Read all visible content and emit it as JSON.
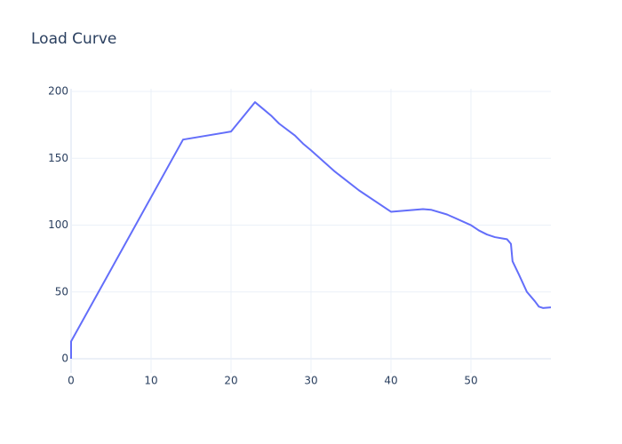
{
  "chart_data": {
    "type": "line",
    "title": "Load Curve",
    "x": [
      0,
      0,
      14,
      20,
      23,
      24,
      25,
      26,
      28,
      29,
      30,
      33,
      36,
      40,
      44,
      45,
      47,
      50,
      51,
      52,
      53,
      54,
      54.5,
      55,
      55.2,
      56,
      57,
      58,
      58.5,
      59,
      60
    ],
    "series": [
      {
        "color": "#636efa",
        "values": [
          0,
          13,
          164,
          170,
          192,
          187,
          182,
          176,
          167,
          161,
          156,
          140,
          126,
          110,
          112,
          111.5,
          108,
          100,
          96,
          93,
          91,
          90,
          89.5,
          86,
          73,
          63,
          50,
          43,
          39,
          38,
          38.5
        ]
      }
    ],
    "xlim": [
      0,
      60
    ],
    "ylim": [
      -10.6,
      202
    ],
    "xticks": [
      0,
      10,
      20,
      30,
      40,
      50
    ],
    "yticks": [
      0,
      50,
      100,
      150,
      200
    ],
    "grid": true
  }
}
